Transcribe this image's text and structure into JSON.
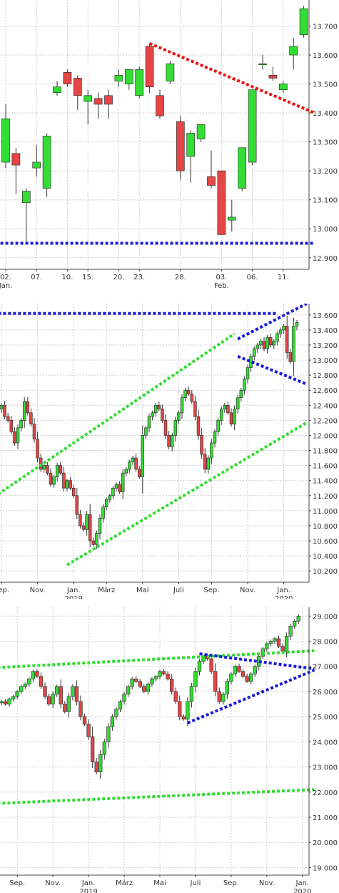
{
  "colors": {
    "up": "#33dd33",
    "down": "#e64545",
    "candle_outline": "#333333",
    "grid": "#cccccc",
    "axis": "#444444",
    "blue_line": "#1a1adc",
    "red_line": "#ee1111",
    "green_line": "#33dd33"
  },
  "chart_data": [
    {
      "type": "candlestick",
      "ylim": [
        12.86,
        13.79
      ],
      "y_ticks": [
        "12.900",
        "13.000",
        "13.100",
        "13.200",
        "13.300",
        "13.400",
        "13.500",
        "13.600",
        "13.700"
      ],
      "x_ticks": [
        {
          "label": "02.",
          "sub": "Jan."
        },
        {
          "label": "07.",
          "sub": ""
        },
        {
          "label": "10.",
          "sub": ""
        },
        {
          "label": "15.",
          "sub": ""
        },
        {
          "label": "20.",
          "sub": ""
        },
        {
          "label": "23.",
          "sub": ""
        },
        {
          "label": "28.",
          "sub": ""
        },
        {
          "label": "03.",
          "sub": "Feb."
        },
        {
          "label": "06.",
          "sub": ""
        },
        {
          "label": "11.",
          "sub": ""
        }
      ],
      "candles": [
        {
          "o": 13.23,
          "h": 13.43,
          "l": 13.21,
          "c": 13.38
        },
        {
          "o": 13.26,
          "h": 13.28,
          "l": 13.12,
          "c": 13.22
        },
        {
          "o": 13.09,
          "h": 13.14,
          "l": 12.95,
          "c": 13.13
        },
        {
          "o": 13.21,
          "h": 13.29,
          "l": 13.18,
          "c": 13.23
        },
        {
          "o": 13.14,
          "h": 13.33,
          "l": 13.11,
          "c": 13.32
        },
        {
          "o": 13.47,
          "h": 13.51,
          "l": 13.46,
          "c": 13.49
        },
        {
          "o": 13.54,
          "h": 13.55,
          "l": 13.49,
          "c": 13.5
        },
        {
          "o": 13.52,
          "h": 13.53,
          "l": 13.41,
          "c": 13.46
        },
        {
          "o": 13.44,
          "h": 13.48,
          "l": 13.36,
          "c": 13.46
        },
        {
          "o": 13.45,
          "h": 13.47,
          "l": 13.38,
          "c": 13.43
        },
        {
          "o": 13.46,
          "h": 13.48,
          "l": 13.38,
          "c": 13.43
        },
        {
          "o": 13.51,
          "h": 13.55,
          "l": 13.49,
          "c": 13.53
        },
        {
          "o": 13.5,
          "h": 13.55,
          "l": 13.48,
          "c": 13.55
        },
        {
          "o": 13.46,
          "h": 13.56,
          "l": 13.45,
          "c": 13.55
        },
        {
          "o": 13.63,
          "h": 13.64,
          "l": 13.47,
          "c": 13.49
        },
        {
          "o": 13.46,
          "h": 13.48,
          "l": 13.38,
          "c": 13.39
        },
        {
          "o": 13.51,
          "h": 13.58,
          "l": 13.5,
          "c": 13.57
        },
        {
          "o": 13.37,
          "h": 13.39,
          "l": 13.17,
          "c": 13.2
        },
        {
          "o": 13.25,
          "h": 13.34,
          "l": 13.16,
          "c": 13.33
        },
        {
          "o": 13.31,
          "h": 13.36,
          "l": 13.3,
          "c": 13.36
        },
        {
          "o": 13.18,
          "h": 13.27,
          "l": 13.14,
          "c": 13.15
        },
        {
          "o": 13.2,
          "h": 13.2,
          "l": 12.98,
          "c": 12.98
        },
        {
          "o": 13.03,
          "h": 13.1,
          "l": 12.99,
          "c": 13.04
        },
        {
          "o": 13.14,
          "h": 13.28,
          "l": 13.13,
          "c": 13.28
        },
        {
          "o": 13.23,
          "h": 13.48,
          "l": 13.22,
          "c": 13.48
        },
        {
          "o": 13.57,
          "h": 13.6,
          "l": 13.55,
          "c": 13.57
        },
        {
          "o": 13.53,
          "h": 13.56,
          "l": 13.51,
          "c": 13.52
        },
        {
          "o": 13.48,
          "h": 13.51,
          "l": 13.47,
          "c": 13.5
        },
        {
          "o": 13.6,
          "h": 13.66,
          "l": 13.55,
          "c": 13.63
        },
        {
          "o": 13.67,
          "h": 13.77,
          "l": 13.66,
          "c": 13.76
        }
      ],
      "trend_lines": [
        {
          "color": "red",
          "points": [
            [
              14,
              13.64
            ],
            [
              31,
              13.4
            ]
          ]
        },
        {
          "color": "blue",
          "points": [
            [
              -1,
              12.95
            ],
            [
              31,
              12.95
            ]
          ]
        }
      ]
    },
    {
      "type": "candlestick",
      "ylim": [
        10.05,
        13.75
      ],
      "y_ticks": [
        "10.200",
        "10.400",
        "10.600",
        "10.800",
        "11.000",
        "11.200",
        "11.400",
        "11.600",
        "11.800",
        "12.000",
        "12.200",
        "12.400",
        "12.600",
        "12.800",
        "13.000",
        "13.200",
        "13.400",
        "13.600"
      ],
      "x_ticks": [
        {
          "label": "Sep.",
          "sub": ""
        },
        {
          "label": "Nov.",
          "sub": ""
        },
        {
          "label": "Jan.",
          "sub": "2019"
        },
        {
          "label": "März",
          "sub": ""
        },
        {
          "label": "Mai",
          "sub": ""
        },
        {
          "label": "Juli",
          "sub": ""
        },
        {
          "label": "Sep.",
          "sub": ""
        },
        {
          "label": "Nov.",
          "sub": ""
        },
        {
          "label": "Jan.",
          "sub": "2020"
        }
      ],
      "closes": [
        12.4,
        12.25,
        12.2,
        12.05,
        11.9,
        12.1,
        12.2,
        12.45,
        12.3,
        12.15,
        11.95,
        11.7,
        11.55,
        11.6,
        11.5,
        11.35,
        11.45,
        11.6,
        11.5,
        11.3,
        11.4,
        11.3,
        11.2,
        10.95,
        10.8,
        10.75,
        10.95,
        10.6,
        10.55,
        10.7,
        10.9,
        11.05,
        11.15,
        11.2,
        11.3,
        11.35,
        11.25,
        11.5,
        11.55,
        11.65,
        11.7,
        11.55,
        11.45,
        12.0,
        12.1,
        12.25,
        12.3,
        12.4,
        12.35,
        12.2,
        12.0,
        11.85,
        12.0,
        12.2,
        12.3,
        12.5,
        12.6,
        12.55,
        12.45,
        12.25,
        12.0,
        11.75,
        11.55,
        11.7,
        11.9,
        12.05,
        12.2,
        12.35,
        12.4,
        12.3,
        12.15,
        12.35,
        12.5,
        12.6,
        12.75,
        12.9,
        13.05,
        13.15,
        13.2,
        13.25,
        13.15,
        13.3,
        13.2,
        13.25,
        13.35,
        13.4,
        13.45,
        13.1,
        12.98,
        13.45,
        13.5
      ],
      "trend_lines": [
        {
          "color": "blue",
          "points": [
            [
              -1,
              13.62
            ],
            [
              84,
              13.62
            ]
          ]
        },
        {
          "color": "green",
          "points": [
            [
              -1,
              11.22
            ],
            [
              71,
              13.35
            ]
          ]
        },
        {
          "color": "green",
          "points": [
            [
              20,
              10.28
            ],
            [
              93,
              12.17
            ]
          ]
        },
        {
          "color": "blue",
          "points": [
            [
              72,
              13.28
            ],
            [
              93,
              13.75
            ]
          ]
        },
        {
          "color": "blue",
          "points": [
            [
              72,
              13.05
            ],
            [
              93,
              12.68
            ]
          ]
        }
      ]
    },
    {
      "type": "candlestick",
      "ylim": [
        18.7,
        29.35
      ],
      "y_ticks": [
        "19.000",
        "20.000",
        "21.000",
        "22.000",
        "23.000",
        "24.000",
        "25.000",
        "26.000",
        "27.000",
        "28.000",
        "29.000"
      ],
      "x_ticks": [
        {
          "label": "Sep.",
          "sub": ""
        },
        {
          "label": "Nov.",
          "sub": ""
        },
        {
          "label": "Jan.",
          "sub": "2019"
        },
        {
          "label": "März",
          "sub": ""
        },
        {
          "label": "Mai",
          "sub": ""
        },
        {
          "label": "Juli",
          "sub": ""
        },
        {
          "label": "Sep.",
          "sub": ""
        },
        {
          "label": "Nov.",
          "sub": ""
        },
        {
          "label": "Jan.",
          "sub": "2020"
        }
      ],
      "closes": [
        25.6,
        25.5,
        25.7,
        25.8,
        26.0,
        26.2,
        26.3,
        26.5,
        26.8,
        26.6,
        26.2,
        25.8,
        25.5,
        25.9,
        26.2,
        25.5,
        25.2,
        25.8,
        26.2,
        25.6,
        25.0,
        24.7,
        24.2,
        23.2,
        22.8,
        23.5,
        24.0,
        24.6,
        25.0,
        25.3,
        25.6,
        25.9,
        26.2,
        26.5,
        26.4,
        26.2,
        26.0,
        26.3,
        26.5,
        26.6,
        26.8,
        26.7,
        26.5,
        26.0,
        25.6,
        25.0,
        24.9,
        25.6,
        26.2,
        26.8,
        27.2,
        27.4,
        27.3,
        26.8,
        26.0,
        25.6,
        25.9,
        26.4,
        26.7,
        27.0,
        26.8,
        26.6,
        26.4,
        26.7,
        27.0,
        27.4,
        27.7,
        27.9,
        28.0,
        28.1,
        27.8,
        27.6,
        28.2,
        28.6,
        28.8,
        29.0
      ],
      "trend_lines": [
        {
          "color": "green",
          "points": [
            [
              -1,
              26.95
            ],
            [
              79,
              27.62
            ]
          ]
        },
        {
          "color": "green",
          "points": [
            [
              -1,
              21.55
            ],
            [
              79,
              22.1
            ]
          ]
        },
        {
          "color": "blue",
          "points": [
            [
              47,
              24.75
            ],
            [
              79,
              26.85
            ]
          ]
        },
        {
          "color": "blue",
          "points": [
            [
              50,
              27.5
            ],
            [
              79,
              26.9
            ]
          ]
        }
      ]
    }
  ]
}
